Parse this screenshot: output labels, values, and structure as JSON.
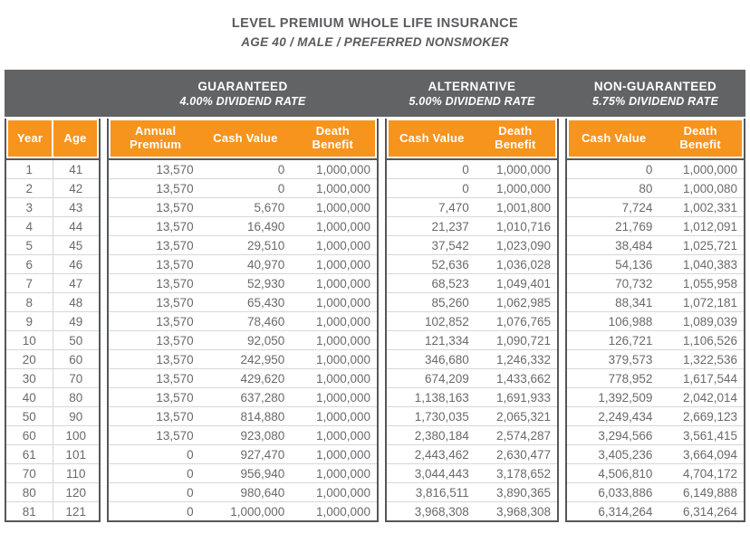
{
  "title": "LEVEL PREMIUM WHOLE LIFE INSURANCE",
  "subtitle": "AGE 40 / MALE / PREFERRED NONSMOKER",
  "colors": {
    "accent_orange": "#F7941E",
    "band_gray": "#616365",
    "border_gray": "#55575A",
    "body_text": "#696A6D",
    "title_text": "#5A5B5E",
    "row_line": "#D6D7D9"
  },
  "sections": [
    {
      "name": "GUARANTEED",
      "rate": "4.00% DIVIDEND RATE"
    },
    {
      "name": "ALTERNATIVE",
      "rate": "5.00% DIVIDEND RATE"
    },
    {
      "name": "NON-GUARANTEED",
      "rate": "5.75% DIVIDEND RATE"
    }
  ],
  "columns": {
    "year": "Year",
    "age": "Age",
    "annual_premium": "Annual Premium",
    "cash_value": "Cash Value",
    "death_benefit": "Death Benefit"
  },
  "rows": [
    [
      "1",
      "41",
      "13,570",
      "0",
      "1,000,000",
      "0",
      "1,000,000",
      "0",
      "1,000,000"
    ],
    [
      "2",
      "42",
      "13,570",
      "0",
      "1,000,000",
      "0",
      "1,000,000",
      "80",
      "1,000,080"
    ],
    [
      "3",
      "43",
      "13,570",
      "5,670",
      "1,000,000",
      "7,470",
      "1,001,800",
      "7,724",
      "1,002,331"
    ],
    [
      "4",
      "44",
      "13,570",
      "16,490",
      "1,000,000",
      "21,237",
      "1,010,716",
      "21,769",
      "1,012,091"
    ],
    [
      "5",
      "45",
      "13,570",
      "29,510",
      "1,000,000",
      "37,542",
      "1,023,090",
      "38,484",
      "1,025,721"
    ],
    [
      "6",
      "46",
      "13,570",
      "40,970",
      "1,000,000",
      "52,636",
      "1,036,028",
      "54,136",
      "1,040,383"
    ],
    [
      "7",
      "47",
      "13,570",
      "52,930",
      "1,000,000",
      "68,523",
      "1,049,401",
      "70,732",
      "1,055,958"
    ],
    [
      "8",
      "48",
      "13,570",
      "65,430",
      "1,000,000",
      "85,260",
      "1,062,985",
      "88,341",
      "1,072,181"
    ],
    [
      "9",
      "49",
      "13,570",
      "78,460",
      "1,000,000",
      "102,852",
      "1,076,765",
      "106,988",
      "1,089,039"
    ],
    [
      "10",
      "50",
      "13,570",
      "92,050",
      "1,000,000",
      "121,334",
      "1,090,721",
      "126,721",
      "1,106,526"
    ],
    [
      "20",
      "60",
      "13,570",
      "242,950",
      "1,000,000",
      "346,680",
      "1,246,332",
      "379,573",
      "1,322,536"
    ],
    [
      "30",
      "70",
      "13,570",
      "429,620",
      "1,000,000",
      "674,209",
      "1,433,662",
      "778,952",
      "1,617,544"
    ],
    [
      "40",
      "80",
      "13,570",
      "637,280",
      "1,000,000",
      "1,138,163",
      "1,691,933",
      "1,392,509",
      "2,042,014"
    ],
    [
      "50",
      "90",
      "13,570",
      "814,880",
      "1,000,000",
      "1,730,035",
      "2,065,321",
      "2,249,434",
      "2,669,123"
    ],
    [
      "60",
      "100",
      "13,570",
      "923,080",
      "1,000,000",
      "2,380,184",
      "2,574,287",
      "3,294,566",
      "3,561,415"
    ],
    [
      "61",
      "101",
      "0",
      "927,470",
      "1,000,000",
      "2,443,462",
      "2,630,477",
      "3,405,236",
      "3,664,094"
    ],
    [
      "70",
      "110",
      "0",
      "956,940",
      "1,000,000",
      "3,044,443",
      "3,178,652",
      "4,506,810",
      "4,704,172"
    ],
    [
      "80",
      "120",
      "0",
      "980,640",
      "1,000,000",
      "3,816,511",
      "3,890,365",
      "6,033,886",
      "6,149,888"
    ],
    [
      "81",
      "121",
      "0",
      "1,000,000",
      "1,000,000",
      "3,968,308",
      "3,968,308",
      "6,314,264",
      "6,314,264"
    ]
  ]
}
